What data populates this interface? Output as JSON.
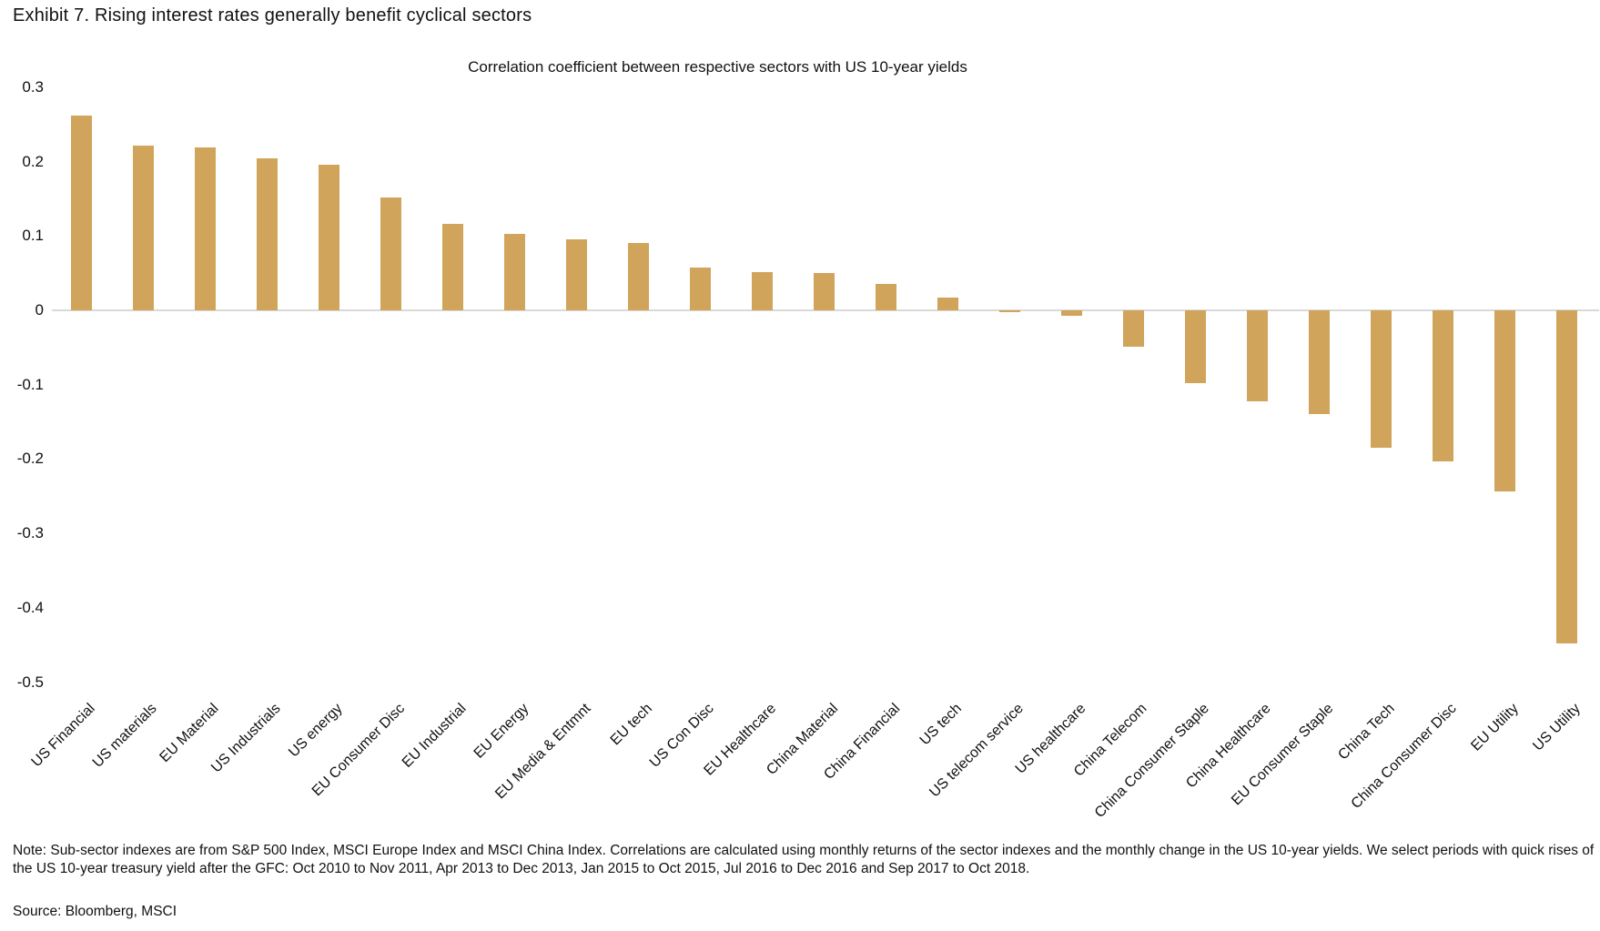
{
  "page": {
    "exhibit_title": "Exhibit 7. Rising interest rates generally benefit cyclical sectors",
    "note": "Note: Sub-sector indexes are from S&P 500 Index, MSCI Europe Index and MSCI China Index. Correlations are calculated using monthly returns of the sector indexes and the monthly change in the US 10-year yields. We select periods with quick rises of the US 10-year treasury yield after the GFC: Oct 2010 to Nov 2011, Apr 2013 to Dec 2013, Jan 2015 to Oct 2015, Jul 2016 to Dec 2016 and Sep 2017 to Oct 2018.",
    "source": "Source: Bloomberg, MSCI"
  },
  "chart_data": {
    "type": "bar",
    "title": "Correlation coefficient between respective sectors with US 10-year yields",
    "categories": [
      "US Financial",
      "US materials",
      "EU Material",
      "US Industrials",
      "US energy",
      "EU Consumer Disc",
      "EU Industrial",
      "EU Energy",
      "EU Media & Entmnt",
      "EU tech",
      "US Con Disc",
      "EU Healthcare",
      "China Material",
      "China Financial",
      "US tech",
      "US telecom service",
      "US healthcare",
      "China Telecom",
      "China Consumer Staple",
      "China Healthcare",
      "EU Consumer Staple",
      "China Tech",
      "China Consumer Disc",
      "EU Utility",
      "US Utility"
    ],
    "values": [
      0.262,
      0.221,
      0.219,
      0.205,
      0.196,
      0.152,
      0.116,
      0.103,
      0.095,
      0.09,
      0.058,
      0.052,
      0.05,
      0.035,
      0.017,
      -0.003,
      -0.007,
      -0.049,
      -0.098,
      -0.123,
      -0.14,
      -0.185,
      -0.203,
      -0.243,
      -0.448
    ],
    "xlabel": "",
    "ylabel": "",
    "ylim": [
      -0.5,
      0.3
    ],
    "yticks": [
      0.3,
      0.2,
      0.1,
      0,
      -0.1,
      -0.2,
      -0.3,
      -0.4,
      -0.5
    ],
    "bar_color": "#d1a45c",
    "zero_line_color": "#d9d9d9",
    "grid": "zero-line-only",
    "legend": "none",
    "x_label_rotation_deg": 45
  }
}
